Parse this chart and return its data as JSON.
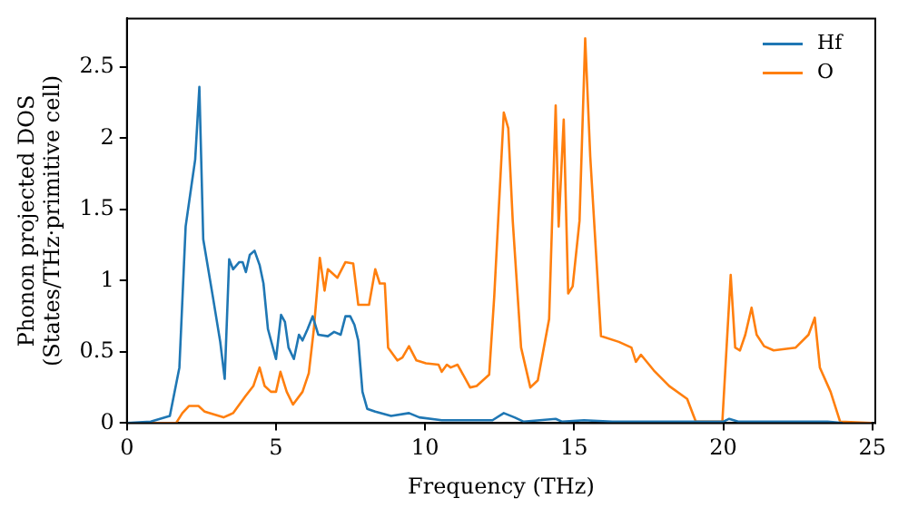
{
  "chart_data": {
    "type": "line",
    "xlabel": "Frequency (THz)",
    "ylabel": "Phonon projected DOS\n(States/THz·primitive cell)",
    "xlim": [
      0,
      25.1
    ],
    "ylim": [
      0,
      2.84
    ],
    "xticks": [
      0,
      5,
      10,
      15,
      20,
      25
    ],
    "yticks": [
      0,
      0.5,
      1,
      1.5,
      2,
      2.5
    ],
    "grid": false,
    "legend": "top right",
    "marker": "none",
    "line_style": "solid",
    "series": [
      {
        "name": "Hf",
        "color": "#1f77b4",
        "x": [
          0,
          0.8,
          1.44,
          1.76,
          1.97,
          2.18,
          2.29,
          2.43,
          2.56,
          2.88,
          3.13,
          3.28,
          3.43,
          3.56,
          3.77,
          3.88,
          3.99,
          4.12,
          4.28,
          4.45,
          4.58,
          4.73,
          5.0,
          5.17,
          5.3,
          5.42,
          5.6,
          5.77,
          5.89,
          6.06,
          6.23,
          6.42,
          6.74,
          6.95,
          7.17,
          7.33,
          7.49,
          7.63,
          7.76,
          7.9,
          8.06,
          8.33,
          8.86,
          9.46,
          9.81,
          10.56,
          12.26,
          12.64,
          13.0,
          13.31,
          14.38,
          14.6,
          15.33,
          16.28,
          20.0,
          20.2,
          20.5,
          23.5,
          24.0
        ],
        "values": [
          0,
          0.01,
          0.05,
          0.39,
          1.38,
          1.69,
          1.85,
          2.36,
          1.29,
          0.89,
          0.57,
          0.31,
          1.15,
          1.08,
          1.13,
          1.13,
          1.06,
          1.18,
          1.21,
          1.11,
          0.98,
          0.66,
          0.45,
          0.76,
          0.71,
          0.53,
          0.45,
          0.62,
          0.58,
          0.66,
          0.75,
          0.62,
          0.61,
          0.64,
          0.62,
          0.75,
          0.75,
          0.69,
          0.58,
          0.22,
          0.1,
          0.08,
          0.05,
          0.07,
          0.04,
          0.02,
          0.02,
          0.07,
          0.04,
          0.01,
          0.03,
          0.01,
          0.02,
          0.01,
          0.01,
          0.03,
          0.01,
          0.01,
          0
        ]
      },
      {
        "name": "O",
        "color": "#ff7f0e",
        "x": [
          0,
          1.65,
          1.86,
          2.08,
          2.4,
          2.61,
          3.24,
          3.56,
          3.98,
          4.24,
          4.45,
          4.62,
          4.83,
          5.0,
          5.15,
          5.36,
          5.57,
          5.89,
          6.1,
          6.27,
          6.47,
          6.63,
          6.74,
          7.06,
          7.33,
          7.59,
          7.76,
          8.12,
          8.33,
          8.48,
          8.65,
          8.76,
          9.07,
          9.24,
          9.46,
          9.71,
          10.03,
          10.45,
          10.56,
          10.73,
          10.86,
          11.09,
          11.51,
          11.73,
          12.15,
          12.32,
          12.64,
          12.79,
          12.94,
          13.22,
          13.53,
          13.78,
          14.16,
          14.38,
          14.48,
          14.65,
          14.8,
          14.95,
          15.18,
          15.37,
          15.54,
          15.9,
          16.5,
          16.92,
          17.07,
          17.24,
          17.67,
          18.19,
          18.79,
          19.08,
          19.97,
          20.25,
          20.4,
          20.56,
          20.74,
          20.95,
          21.12,
          21.37,
          21.69,
          22.43,
          22.86,
          23.07,
          23.24,
          23.6,
          23.92,
          24.97
        ],
        "values": [
          0,
          0,
          0.07,
          0.12,
          0.12,
          0.08,
          0.04,
          0.07,
          0.19,
          0.26,
          0.39,
          0.26,
          0.22,
          0.22,
          0.36,
          0.22,
          0.13,
          0.22,
          0.35,
          0.66,
          1.16,
          0.93,
          1.08,
          1.02,
          1.13,
          1.12,
          0.83,
          0.83,
          1.08,
          0.98,
          0.98,
          0.53,
          0.44,
          0.46,
          0.54,
          0.44,
          0.42,
          0.41,
          0.36,
          0.41,
          0.39,
          0.41,
          0.25,
          0.26,
          0.34,
          0.89,
          2.18,
          2.07,
          1.42,
          0.53,
          0.25,
          0.3,
          0.73,
          2.23,
          1.38,
          2.13,
          0.91,
          0.96,
          1.42,
          2.7,
          1.87,
          0.61,
          0.57,
          0.53,
          0.43,
          0.48,
          0.37,
          0.26,
          0.17,
          0.01,
          0.01,
          1.04,
          0.53,
          0.51,
          0.62,
          0.81,
          0.62,
          0.54,
          0.51,
          0.53,
          0.62,
          0.74,
          0.39,
          0.22,
          0.01,
          0
        ]
      }
    ]
  }
}
